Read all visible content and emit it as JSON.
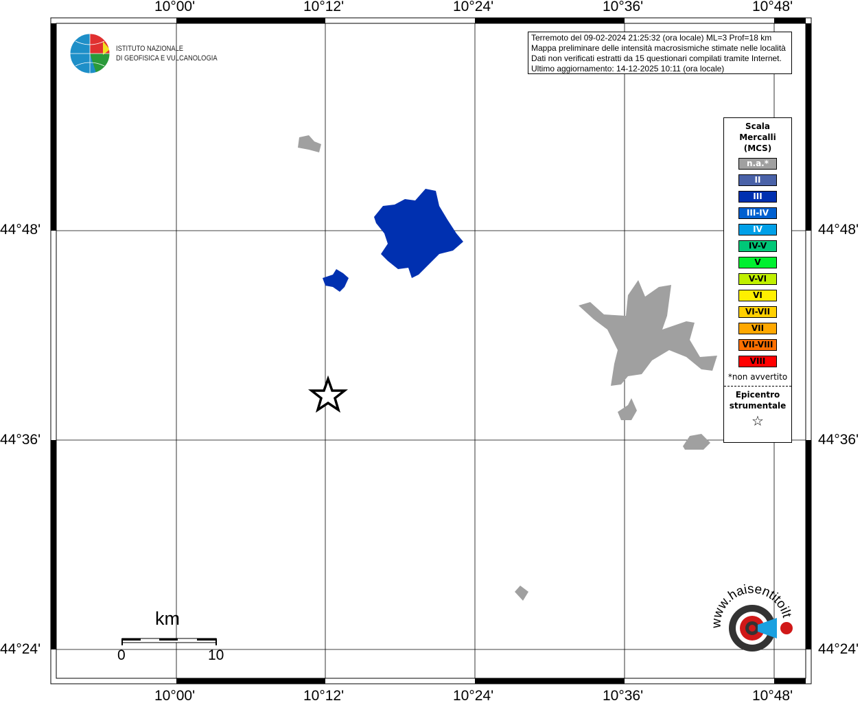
{
  "axes": {
    "x_ticks": [
      "10°00'",
      "10°12'",
      "10°24'",
      "10°36'",
      "10°48'"
    ],
    "y_ticks": [
      "44°48'",
      "44°36'",
      "44°24'"
    ]
  },
  "logo": {
    "name_line1": "ISTITUTO NAZIONALE",
    "name_line2": "DI GEOFISICA E VULCANOLOGIA"
  },
  "info": {
    "line1": "Terremoto del 09-02-2024 21:25:32 (ora locale) ML=3 Prof=18 km",
    "line2": "Mappa preliminare delle intensità macrosismiche stimate nelle località",
    "line3": "Dati non verificati estratti da 15 questionari compilati tramite Internet.",
    "line4": "Ultimo aggiornamento: 14-12-2025 10:11 (ora locale)"
  },
  "legend": {
    "title1": "Scala",
    "title2": "Mercalli",
    "title3": "(MCS)",
    "items": [
      {
        "label": "n.a.*",
        "color": "#a0a0a0",
        "text": "#ffffff"
      },
      {
        "label": "II",
        "color": "#4a62a8",
        "text": "#ffffff"
      },
      {
        "label": "III",
        "color": "#0030b0",
        "text": "#ffffff"
      },
      {
        "label": "III-IV",
        "color": "#0060d0",
        "text": "#ffffff"
      },
      {
        "label": "IV",
        "color": "#00a0e8",
        "text": "#ffffff"
      },
      {
        "label": "IV-V",
        "color": "#00c878",
        "text": "#000000"
      },
      {
        "label": "V",
        "color": "#00f030",
        "text": "#000000"
      },
      {
        "label": "V-VI",
        "color": "#c0f000",
        "text": "#000000"
      },
      {
        "label": "VI",
        "color": "#fff000",
        "text": "#000000"
      },
      {
        "label": "VI-VII",
        "color": "#ffd000",
        "text": "#000000"
      },
      {
        "label": "VII",
        "color": "#ffa800",
        "text": "#000000"
      },
      {
        "label": "VII-VIII",
        "color": "#ff7000",
        "text": "#000000"
      },
      {
        "label": "VIII",
        "color": "#ff0000",
        "text": "#000000"
      }
    ],
    "note": "*non avvertito",
    "epicentre1": "Epicentro",
    "epicentre2": "strumentale"
  },
  "scale_bar": {
    "unit": "km",
    "start": "0",
    "end": "10"
  },
  "watermark": "www.haisentitoilterremoto.it"
}
